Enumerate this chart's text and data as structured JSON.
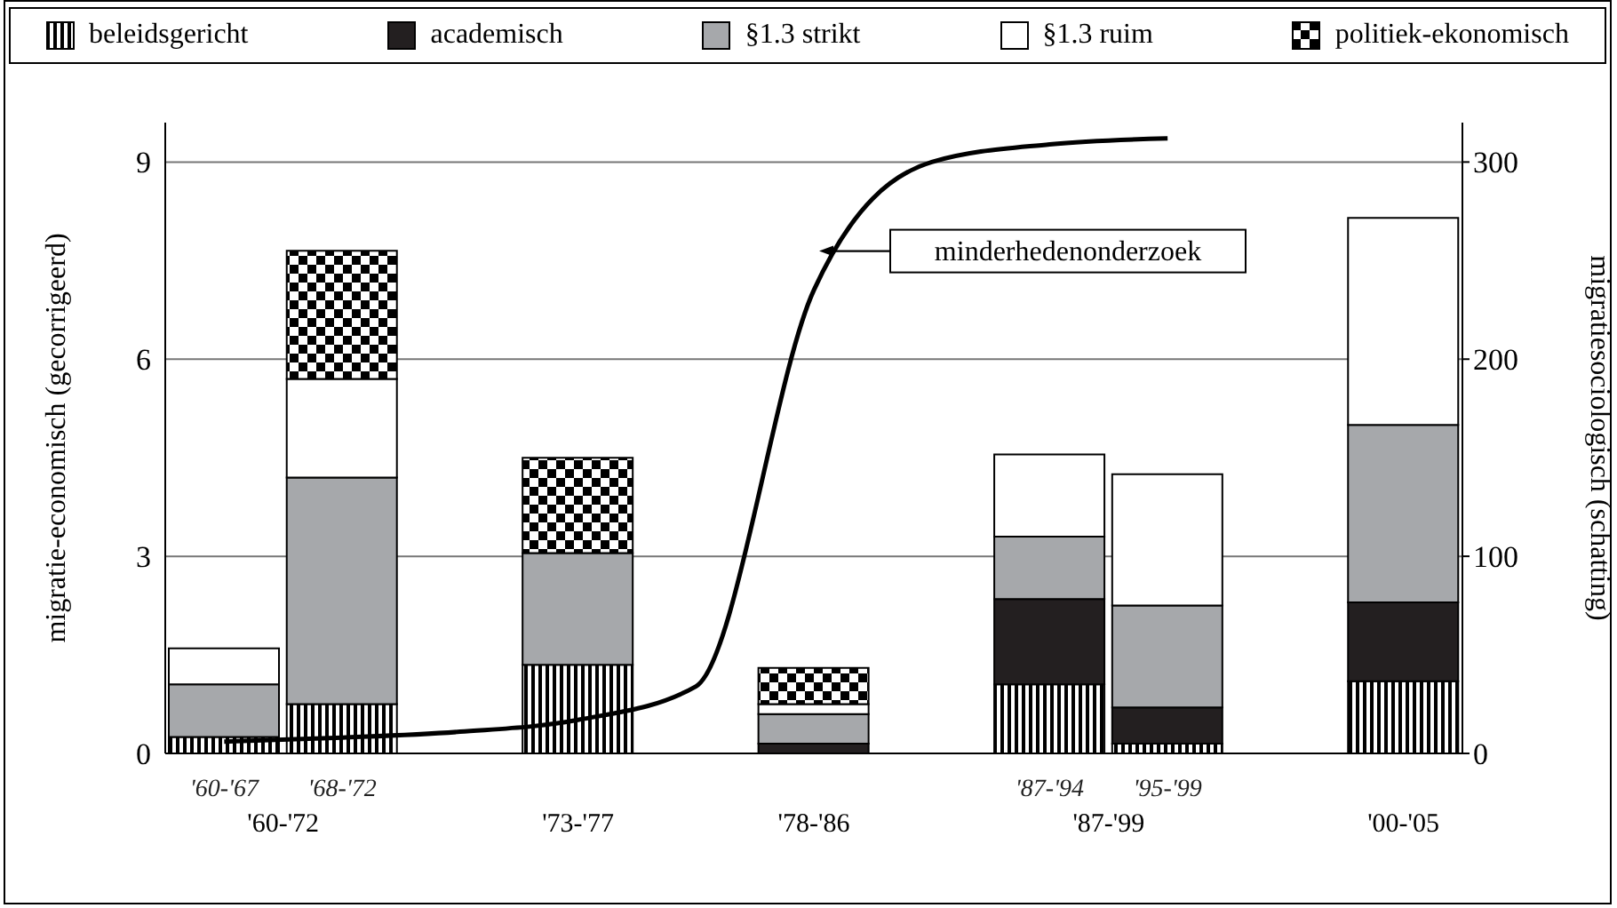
{
  "chart_data": {
    "type": "bar",
    "stacked": true,
    "legend": "top",
    "grid": "y",
    "ylabel": "migratie-economisch (gecorrigeerd)",
    "y2label": "migratiesociologisch (schatting)",
    "categories": [
      "'60-'67",
      "'68-'72",
      null,
      "'73-'77",
      null,
      "'78-'86",
      null,
      "'87-'94",
      "'95-'99",
      null,
      "'00-'05"
    ],
    "annotations": [
      "'60-'72",
      "'87-'99"
    ],
    "ylim": [
      0,
      9.6
    ],
    "yticks": [
      0,
      3,
      6,
      9
    ],
    "y2lim": [
      0,
      320
    ],
    "y2ticks": [
      0,
      100,
      200,
      300
    ],
    "series": [
      {
        "name": "beleidsgericht",
        "color": "#000000",
        "values": [
          0.25,
          0.75,
          null,
          1.35,
          null,
          0,
          null,
          1.05,
          0.15,
          null,
          1.1
        ]
      },
      {
        "name": "academisch",
        "color": "#231f20",
        "values": [
          0,
          0,
          null,
          0,
          null,
          0.15,
          null,
          1.3,
          0.55,
          null,
          1.2
        ]
      },
      {
        "name": "§1.3 strikt",
        "color": "#a6a8ab",
        "values": [
          0.8,
          3.45,
          null,
          1.7,
          null,
          0.45,
          null,
          0.95,
          1.55,
          null,
          2.7
        ]
      },
      {
        "name": "§1.3 ruim",
        "color": "#ffffff",
        "values": [
          0.55,
          1.5,
          null,
          0,
          null,
          0.15,
          null,
          1.25,
          2.0,
          null,
          3.15
        ]
      },
      {
        "name": "politiek-ekonomisch",
        "color": "#000000",
        "values": [
          0,
          1.95,
          null,
          1.45,
          null,
          0.55,
          null,
          0,
          0,
          null,
          0
        ]
      },
      {
        "name": "minderhedenonderzoek",
        "type": "line",
        "axis": "y2",
        "color": "#000000",
        "values": [
          6,
          8,
          11,
          17,
          34,
          235,
          300,
          309,
          312,
          null,
          null
        ]
      }
    ]
  }
}
